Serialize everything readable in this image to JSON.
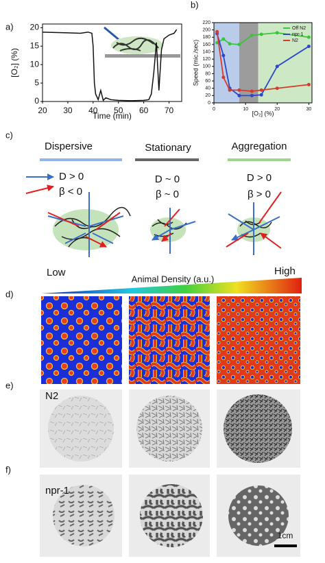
{
  "panel_labels": [
    "a)",
    "b)",
    "c)",
    "d)",
    "e)",
    "f)"
  ],
  "chart_data": [
    {
      "type": "line",
      "xlabel": "Time (min)",
      "ylabel": "[O₂] (%)",
      "color": "#111111",
      "x": [
        20,
        25,
        30,
        35,
        38,
        39.5,
        40,
        40.5,
        41,
        42,
        43,
        44,
        45,
        47,
        50,
        55,
        60,
        62,
        63,
        64,
        65,
        66,
        67,
        68,
        70,
        72,
        73
      ],
      "values": [
        18.8,
        18.7,
        18.6,
        18.5,
        18.8,
        18.5,
        15,
        5,
        2,
        0.5,
        3,
        0.3,
        1,
        0.5,
        0.3,
        0.2,
        0.3,
        0.5,
        2,
        8,
        16,
        3,
        14,
        17,
        18,
        18.5,
        19.5
      ],
      "xlim": [
        20,
        75
      ],
      "xticks": [
        20,
        30,
        40,
        50,
        60,
        70
      ],
      "ylim": [
        0,
        21
      ],
      "yticks": [
        0,
        5,
        10,
        15,
        20
      ]
    },
    {
      "type": "line",
      "xlabel": "[O₂] (%)",
      "ylabel": "Speed (mic./sec)",
      "markers": true,
      "legend": "top-right",
      "x": [
        1,
        3,
        5,
        8,
        12,
        15,
        20,
        30
      ],
      "series": [
        {
          "name": "Off N2",
          "color": "#3cc43c",
          "values": [
            165,
            175,
            162,
            160,
            185,
            188,
            192,
            180
          ]
        },
        {
          "name": "npr-1",
          "color": "#2a48c8",
          "values": [
            190,
            130,
            40,
            20,
            20,
            22,
            100,
            155
          ]
        },
        {
          "name": "N2",
          "color": "#d83a2a",
          "values": [
            195,
            70,
            35,
            35,
            32,
            35,
            40,
            50
          ]
        }
      ],
      "bands": [
        {
          "x0": 0,
          "x1": 8,
          "color": "#b9cdeb"
        },
        {
          "x0": 8,
          "x1": 14,
          "color": "#9c9c9c"
        },
        {
          "x0": 14,
          "x1": 31,
          "color": "#cde8c4"
        }
      ],
      "xlim": [
        0,
        31
      ],
      "xticks": [
        0,
        10,
        20,
        30
      ],
      "ylim": [
        0,
        220
      ],
      "yticks": [
        0,
        20,
        40,
        60,
        80,
        100,
        120,
        140,
        160,
        180,
        200,
        220
      ]
    }
  ],
  "panel_c": {
    "columns": [
      {
        "title": "Dispersive",
        "lines": [
          "D > 0",
          "β < 0"
        ]
      },
      {
        "title": "Stationary",
        "lines": [
          "D ~ 0",
          "β ~ 0"
        ]
      },
      {
        "title": "Aggregation",
        "lines": [
          "D > 0",
          "β > 0"
        ]
      }
    ]
  },
  "panel_d": {
    "low": "Low",
    "high": "High",
    "axis_label": "Animal Density (a.u.)"
  },
  "panel_e": {
    "label": "N2"
  },
  "panel_f": {
    "label": "npr-1",
    "scale_bar": "1cm"
  }
}
